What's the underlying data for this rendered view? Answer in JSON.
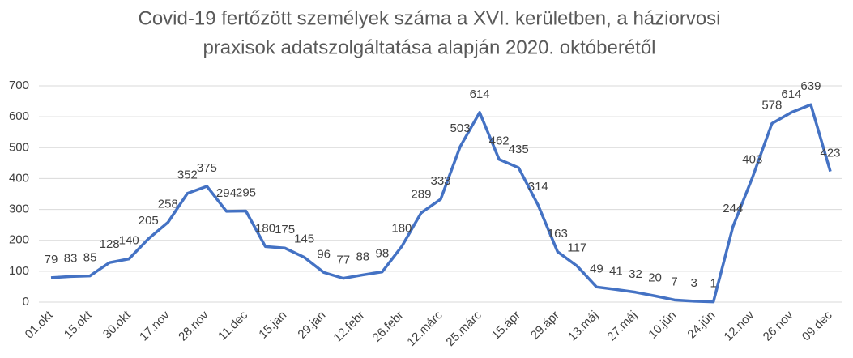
{
  "chart_data": {
    "type": "line",
    "title": [
      "Covid-19 fertőzött személyek száma a XVI. kerületben, a háziorvosi",
      "praxisok adatszolgáltatása alapján 2020. októberétől"
    ],
    "categories": [
      "01.okt",
      null,
      "15.okt",
      null,
      "30.okt",
      null,
      "17.nov",
      null,
      "28.nov",
      null,
      "11.dec",
      null,
      "15.jan",
      null,
      "29.jan",
      null,
      "12.febr",
      null,
      "26.febr",
      null,
      "12.márc",
      null,
      "25.márc",
      null,
      "15.ápr",
      null,
      "29.ápr",
      null,
      "13.máj",
      null,
      "27.máj",
      null,
      "10.jún",
      null,
      "24.jún",
      null,
      "12.nov",
      null,
      "26.nov",
      null,
      "09.dec"
    ],
    "values": [
      79,
      83,
      85,
      128,
      140,
      205,
      258,
      352,
      375,
      294,
      295,
      180,
      175,
      145,
      96,
      77,
      88,
      98,
      180,
      289,
      333,
      503,
      614,
      462,
      435,
      314,
      163,
      117,
      49,
      41,
      32,
      20,
      7,
      3,
      1,
      244,
      403,
      578,
      614,
      639,
      423
    ],
    "color": "#4472c4",
    "ylim": [
      0,
      700
    ],
    "yticks": [
      0,
      100,
      200,
      300,
      400,
      500,
      600,
      700
    ],
    "grid": true
  }
}
